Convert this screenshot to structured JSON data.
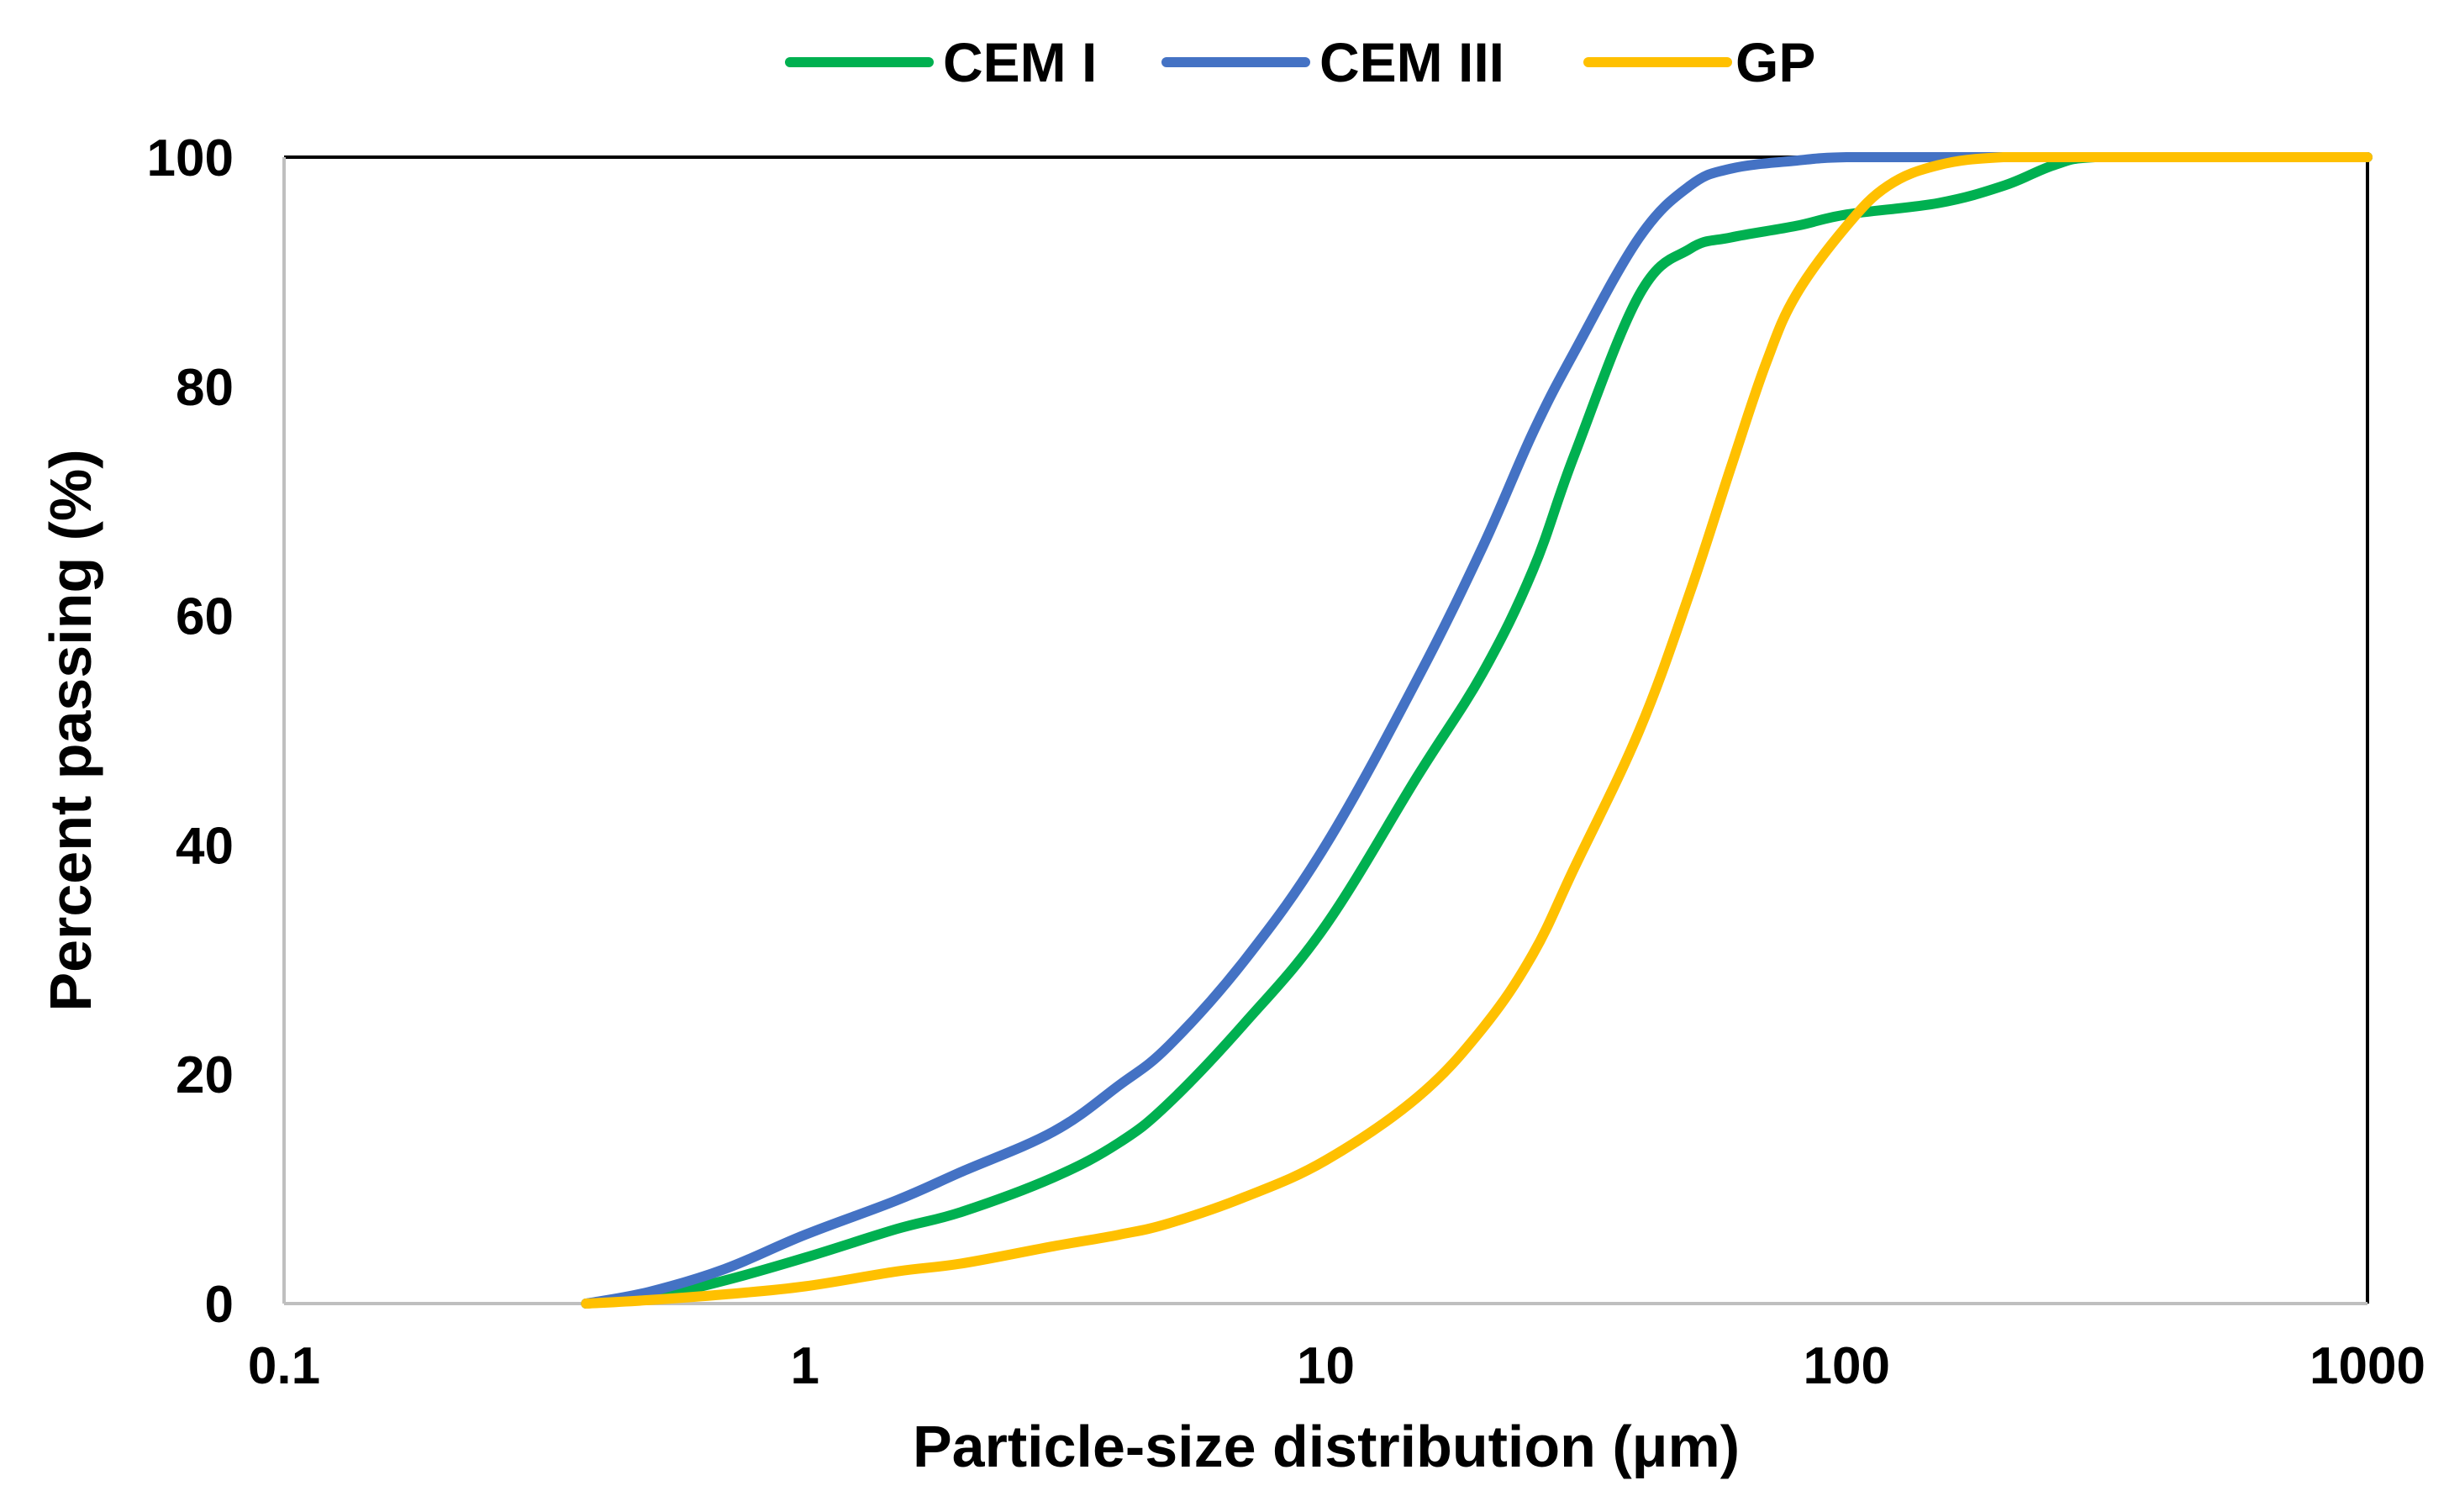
{
  "chart_data": {
    "type": "line",
    "title": "",
    "xlabel": "Particle-size distribution (μm)",
    "ylabel": "Percent passing (%)",
    "xscale": "log",
    "xlim": [
      0.1,
      1000
    ],
    "ylim": [
      0,
      100
    ],
    "xticks": [
      0.1,
      1,
      10,
      100,
      1000
    ],
    "xtick_labels": [
      "0.1",
      "1",
      "10",
      "100",
      "1000"
    ],
    "yticks": [
      0,
      20,
      40,
      60,
      80,
      100
    ],
    "ytick_labels": [
      "0",
      "20",
      "40",
      "60",
      "80",
      "100"
    ],
    "legend_position": "top-center",
    "grid": false,
    "series": [
      {
        "name": "CEM I",
        "color": "#00B050",
        "x": [
          0.38,
          0.5,
          0.7,
          1.0,
          1.5,
          2,
          3,
          4,
          5,
          7,
          10,
          15,
          20,
          25,
          30,
          40,
          50,
          60,
          80,
          100,
          150,
          200,
          250,
          300,
          500,
          1000
        ],
        "y": [
          0,
          0.5,
          2,
          4,
          6.5,
          8,
          11,
          14,
          17.5,
          24.5,
          33,
          46,
          55,
          64,
          74,
          88,
          92,
          93,
          94,
          95,
          96,
          97.5,
          99.3,
          100,
          100,
          100
        ]
      },
      {
        "name": "CEM III",
        "color": "#4472C4",
        "x": [
          0.38,
          0.5,
          0.7,
          1.0,
          1.5,
          2,
          3,
          4,
          5,
          7,
          10,
          15,
          20,
          25,
          30,
          40,
          50,
          60,
          80,
          100,
          150,
          200,
          500,
          1000
        ],
        "y": [
          0,
          1,
          3,
          6,
          9,
          11.5,
          15,
          19,
          22.5,
          30,
          40,
          54.5,
          66,
          76,
          83,
          93,
          97.5,
          99,
          99.7,
          100,
          100,
          100,
          100,
          100
        ]
      },
      {
        "name": "GP",
        "color": "#FFC000",
        "x": [
          0.38,
          0.5,
          0.7,
          1.0,
          1.5,
          2,
          3,
          4,
          5,
          7,
          10,
          15,
          20,
          25,
          30,
          40,
          50,
          60,
          70,
          80,
          100,
          120,
          150,
          200,
          300,
          500,
          1000
        ],
        "y": [
          0,
          0.3,
          0.8,
          1.5,
          2.8,
          3.5,
          5,
          6,
          7,
          9.3,
          12.5,
          18,
          24,
          30.5,
          38,
          50,
          62,
          73,
          82,
          88,
          94,
          97.5,
          99.3,
          100,
          100,
          100,
          100
        ]
      }
    ]
  }
}
